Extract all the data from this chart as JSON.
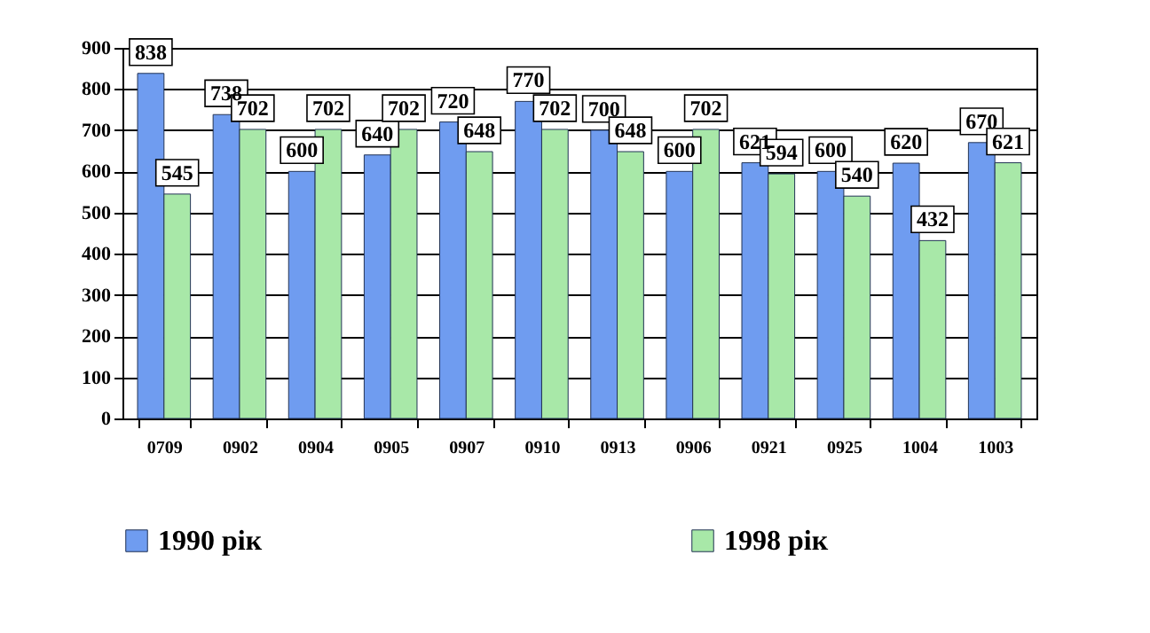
{
  "chart_data": {
    "type": "bar",
    "categories": [
      "0709",
      "0902",
      "0904",
      "0905",
      "0907",
      "0910",
      "0913",
      "0906",
      "0921",
      "0925",
      "1004",
      "1003"
    ],
    "series": [
      {
        "name": "1990 рік",
        "color": "#6f9cf0",
        "values": [
          838,
          738,
          600,
          640,
          720,
          770,
          700,
          600,
          621,
          600,
          620,
          670
        ]
      },
      {
        "name": "1998 рік",
        "color": "#a8e8a8",
        "values": [
          545,
          702,
          702,
          702,
          648,
          702,
          648,
          702,
          594,
          540,
          432,
          621
        ]
      }
    ],
    "ylim": [
      0,
      900
    ],
    "yticks": [
      0,
      100,
      200,
      300,
      400,
      500,
      600,
      700,
      800,
      900
    ],
    "grid": "y",
    "legend": "bottom",
    "data_labels": true
  }
}
